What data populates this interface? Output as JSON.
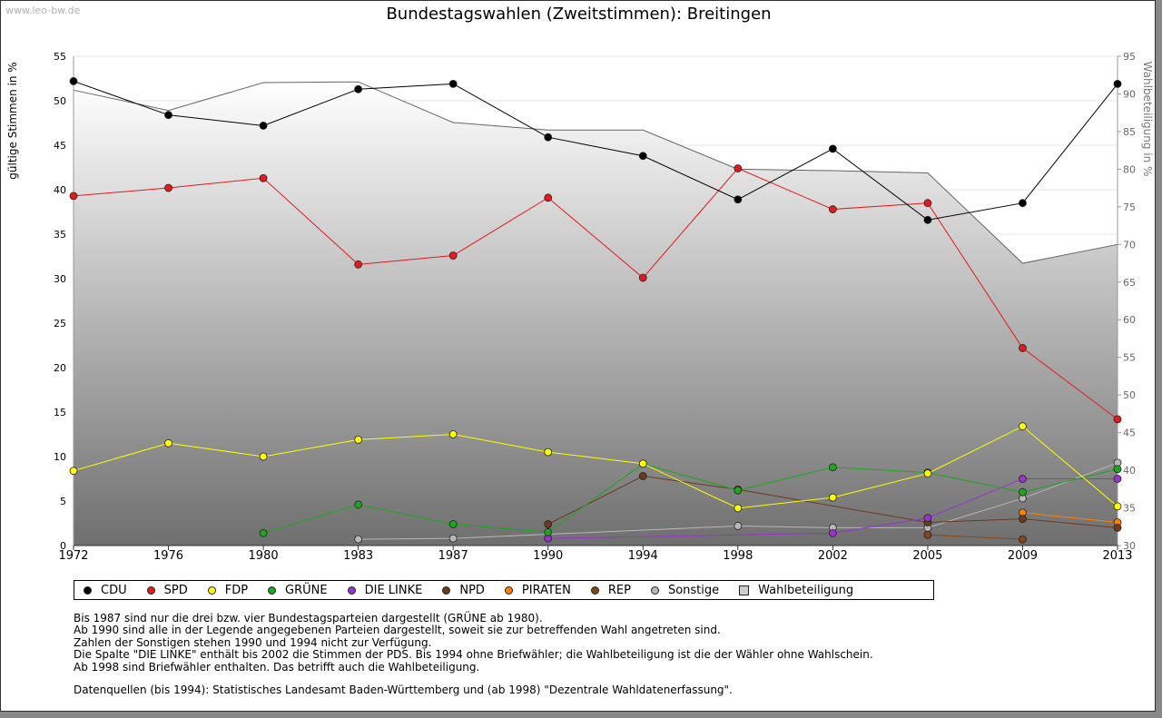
{
  "watermark": "www.leo-bw.de",
  "chart_data": {
    "type": "line",
    "title": "Bundestagswahlen (Zweitstimmen): Breitingen",
    "ylabel": "gültige Stimmen in %",
    "y2label": "Wahlbeteiligung in %",
    "ylim": [
      0,
      55
    ],
    "y2lim": [
      30,
      95
    ],
    "yticks": [
      0,
      5,
      10,
      15,
      20,
      25,
      30,
      35,
      40,
      45,
      50,
      55
    ],
    "y2ticks": [
      30,
      35,
      40,
      45,
      50,
      55,
      60,
      65,
      70,
      75,
      80,
      85,
      90,
      95
    ],
    "x": [
      "1972",
      "1976",
      "1980",
      "1983",
      "1987",
      "1990",
      "1994",
      "1998",
      "2002",
      "2005",
      "2009",
      "2013"
    ],
    "grid": true,
    "legend_position": "bottom",
    "turnout": {
      "name": "Wahlbeteiligung",
      "axis": "right",
      "values": [
        90.5,
        87.8,
        91.5,
        91.6,
        86.2,
        85.2,
        85.2,
        80.0,
        79.8,
        79.5,
        67.5,
        70.0
      ]
    },
    "series": [
      {
        "name": "CDU",
        "color": "#000000",
        "values": [
          52.2,
          48.4,
          47.2,
          51.3,
          51.9,
          45.9,
          43.8,
          38.9,
          44.6,
          36.6,
          38.5,
          51.9
        ]
      },
      {
        "name": "SPD",
        "color": "#e41a1c",
        "values": [
          39.3,
          40.2,
          41.3,
          31.6,
          32.6,
          39.1,
          30.1,
          42.4,
          37.8,
          38.5,
          22.2,
          14.2
        ]
      },
      {
        "name": "FDP",
        "color": "#ffff00",
        "values": [
          8.4,
          11.5,
          10.0,
          11.9,
          12.5,
          10.5,
          9.2,
          4.2,
          5.4,
          8.1,
          13.4,
          4.4
        ]
      },
      {
        "name": "GRÜNE",
        "color": "#1ca81c",
        "values": [
          null,
          null,
          1.4,
          4.6,
          2.4,
          1.5,
          9.2,
          6.2,
          8.8,
          8.2,
          6.0,
          8.6
        ]
      },
      {
        "name": "DIE LINKE",
        "color": "#9933cc",
        "values": [
          null,
          null,
          null,
          null,
          null,
          0.8,
          null,
          null,
          1.4,
          3.1,
          7.5,
          7.5
        ]
      },
      {
        "name": "NPD",
        "color": "#6b3a1f",
        "values": [
          null,
          null,
          null,
          null,
          null,
          2.4,
          7.8,
          6.3,
          null,
          2.6,
          3.0,
          2.0
        ]
      },
      {
        "name": "PIRATEN",
        "color": "#ff8000",
        "values": [
          null,
          null,
          null,
          null,
          null,
          null,
          null,
          null,
          null,
          null,
          3.7,
          2.6
        ]
      },
      {
        "name": "REP",
        "color": "#8b4513",
        "values": [
          null,
          null,
          null,
          null,
          null,
          null,
          null,
          null,
          null,
          1.2,
          0.7,
          null
        ]
      },
      {
        "name": "Sonstige",
        "color": "#b8b8b8",
        "values": [
          null,
          null,
          null,
          0.7,
          0.8,
          null,
          null,
          2.2,
          2.0,
          2.0,
          5.3,
          9.3
        ]
      }
    ]
  },
  "legend": {
    "items": [
      {
        "label": "CDU",
        "color": "#000000"
      },
      {
        "label": "SPD",
        "color": "#e41a1c"
      },
      {
        "label": "FDP",
        "color": "#ffff00"
      },
      {
        "label": "GRÜNE",
        "color": "#1ca81c"
      },
      {
        "label": "DIE LINKE",
        "color": "#9933cc"
      },
      {
        "label": "NPD",
        "color": "#6b3a1f"
      },
      {
        "label": "PIRATEN",
        "color": "#ff8000"
      },
      {
        "label": "REP",
        "color": "#8b4513"
      },
      {
        "label": "Sonstige",
        "color": "#b8b8b8"
      }
    ],
    "turnout_label": "Wahlbeteiligung"
  },
  "notes": [
    "Bis 1987 sind nur die drei bzw. vier Bundestagsparteien dargestellt (GRÜNE ab 1980).",
    "Ab 1990 sind alle in der Legende angegebenen Parteien dargestellt, soweit sie zur betreffenden Wahl angetreten sind.",
    "Zahlen der Sonstigen stehen 1990 und 1994 nicht zur Verfügung.",
    "Die Spalte \"DIE LINKE\" enthält bis 2002 die Stimmen der PDS. Bis 1994 ohne Briefwähler; die Wahlbeteiligung ist die der Wähler ohne Wahlschein.",
    "Ab 1998 sind Briefwähler enthalten. Das betrifft auch die Wahlbeteiligung."
  ],
  "source": "Datenquellen (bis 1994): Statistisches Landesamt Baden-Württemberg und (ab 1998) \"Dezentrale Wahldatenerfassung\"."
}
